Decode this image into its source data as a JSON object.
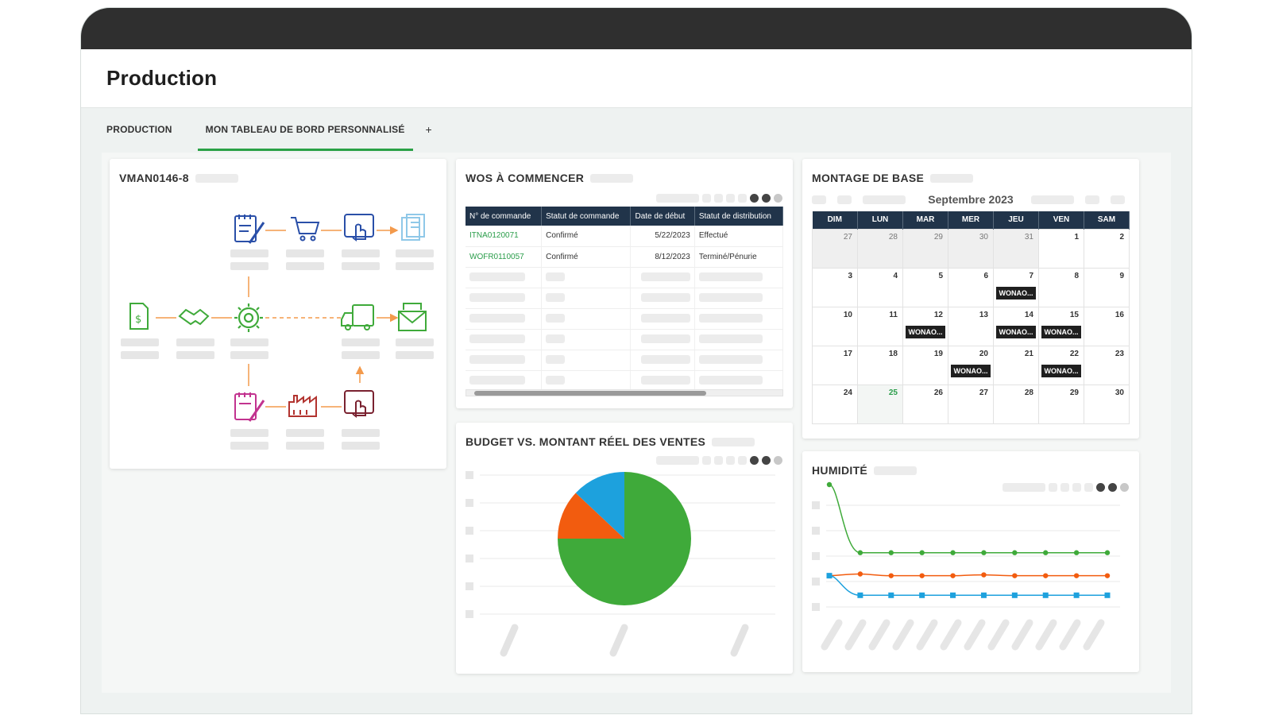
{
  "app": {
    "title": "Production"
  },
  "tabs": [
    {
      "label": "PRODUCTION"
    },
    {
      "label": "MON TABLEAU DE BORD PERSONNALISÉ"
    },
    {
      "label": "+"
    }
  ],
  "workflow": {
    "title": "VMAN0146-8"
  },
  "orders": {
    "title": "WOS À COMMENCER",
    "columns": [
      "N° de commande",
      "Statut de commande",
      "Date de début",
      "Statut de distribution"
    ],
    "rows": [
      [
        "ITNA0120071",
        "Confirmé",
        "5/22/2023",
        "Effectué"
      ],
      [
        "WOFR0110057",
        "Confirmé",
        "8/12/2023",
        "Terminé/Pénurie"
      ]
    ]
  },
  "calendar": {
    "title": "MONTAGE DE BASE",
    "month": "Septembre 2023",
    "weekdays": [
      "DIM",
      "LUN",
      "MAR",
      "MER",
      "JEU",
      "VEN",
      "SAM"
    ],
    "event_label": "WONAO...",
    "weeks": [
      [
        "27",
        "28",
        "29",
        "30",
        "31",
        "1",
        "2"
      ],
      [
        "3",
        "4",
        "5",
        "6",
        "7",
        "8",
        "9"
      ],
      [
        "10",
        "11",
        "12",
        "13",
        "14",
        "15",
        "16"
      ],
      [
        "17",
        "18",
        "19",
        "20",
        "21",
        "22",
        "23"
      ],
      [
        "24",
        "25",
        "26",
        "27",
        "28",
        "29",
        "30"
      ]
    ]
  },
  "budget": {
    "title": "BUDGET VS. MONTANT RÉEL DES VENTES"
  },
  "humidity": {
    "title": "HUMIDITÉ"
  },
  "colors": {
    "accent": "#2aa146",
    "header_dark": "#21344a",
    "pie_green": "#3faa3a",
    "pie_orange": "#f25c0f",
    "pie_blue": "#1da1dd",
    "icon_blue": "#2a4fa8",
    "icon_orange": "#f39a4c",
    "icon_green": "#3faa3a",
    "icon_magenta": "#c2338f",
    "icon_red": "#b2332f"
  },
  "chart_data": [
    {
      "type": "pie",
      "title": "BUDGET VS. MONTANT RÉEL DES VENTES",
      "values": [
        75,
        12,
        13
      ],
      "colors": [
        "#3faa3a",
        "#f25c0f",
        "#1da1dd"
      ]
    },
    {
      "type": "line",
      "title": "HUMIDITÉ",
      "x": [
        1,
        2,
        3,
        4,
        5,
        6,
        7,
        8,
        9,
        10
      ],
      "series": [
        {
          "color": "#3faa3a",
          "values": [
            100,
            20,
            20,
            20,
            20,
            20,
            20,
            20,
            20,
            20
          ]
        },
        {
          "color": "#f25c0f",
          "values": [
            -7,
            -5,
            -7,
            -7,
            -7,
            -6,
            -7,
            -7,
            -7,
            -7
          ]
        },
        {
          "color": "#1da1dd",
          "values": [
            -7,
            -30,
            -30,
            -30,
            -30,
            -30,
            -30,
            -30,
            -30,
            -30
          ]
        }
      ]
    }
  ]
}
